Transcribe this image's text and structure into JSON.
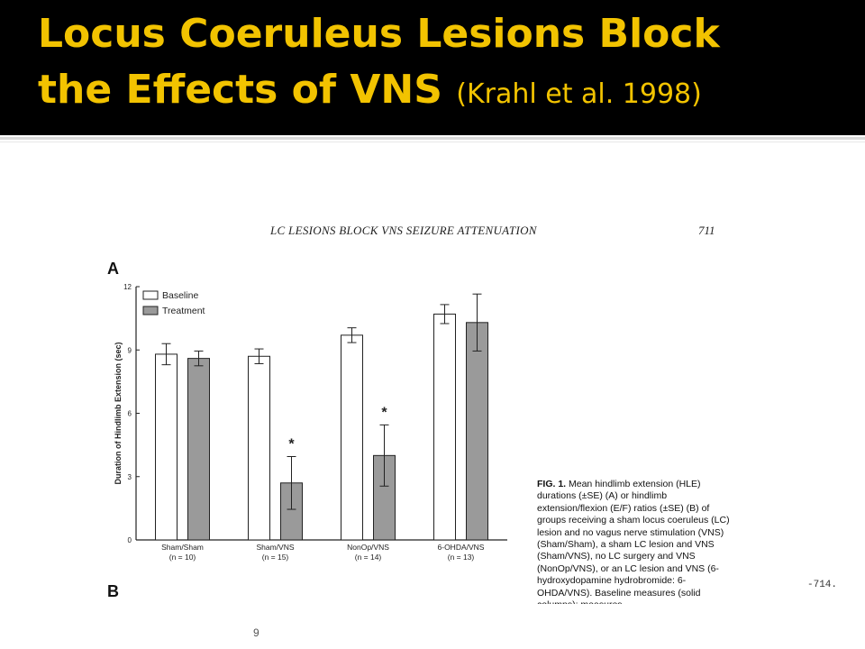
{
  "slide": {
    "title_line1": "Locus Coeruleus Lesions Block",
    "title_line2": "the Effects of VNS",
    "title_citation": "(Krahl et al. 1998)",
    "slide_number": "9",
    "stray_text": "-714.",
    "colors": {
      "title_bg": "#000000",
      "title_text": "#f2c300",
      "baseline_fill": "#ffffff",
      "treatment_fill": "#9a9a9a"
    }
  },
  "scan": {
    "page_header": "LC LESIONS BLOCK VNS SEIZURE ATTENUATION",
    "page_number": "711",
    "panel_a": "A",
    "panel_b": "B",
    "caption_lead": "FIG. 1.",
    "caption": " Mean hindlimb extension (HLE) durations (±SE) (A) or hindlimb extension/flexion (E/F) ratios (±SE) (B) of groups receiving a sham locus coeruleus (LC) lesion and no vagus nerve stimulation (VNS) (Sham/Sham), a sham LC lesion and VNS (Sham/VNS), no LC surgery and VNS (NonOp/VNS), or an LC lesion and VNS (6-hydroxydopamine hydrobromide: 6-OHDA/VNS). Baseline measures (solid columns); measures"
  },
  "chart_data": {
    "type": "bar",
    "ylabel": "Duration of Hindlimb Extension (sec)",
    "ylim": [
      0,
      12
    ],
    "yticks": [
      "0",
      "3",
      "6",
      "9",
      "12"
    ],
    "legend_position": "top-left",
    "categories": [
      "Sham/Sham",
      "Sham/VNS",
      "NonOp/VNS",
      "6-OHDA/VNS"
    ],
    "category_n": [
      "(n = 10)",
      "(n = 15)",
      "(n = 14)",
      "(n = 13)"
    ],
    "series": [
      {
        "name": "Baseline",
        "values": [
          8.8,
          8.7,
          9.7,
          10.7
        ],
        "errors": [
          0.5,
          0.35,
          0.35,
          0.45
        ]
      },
      {
        "name": "Treatment",
        "values": [
          8.6,
          2.7,
          4.0,
          10.3
        ],
        "errors": [
          0.35,
          1.25,
          1.45,
          1.35
        ]
      }
    ],
    "significance": [
      "",
      "*",
      "*",
      ""
    ]
  }
}
